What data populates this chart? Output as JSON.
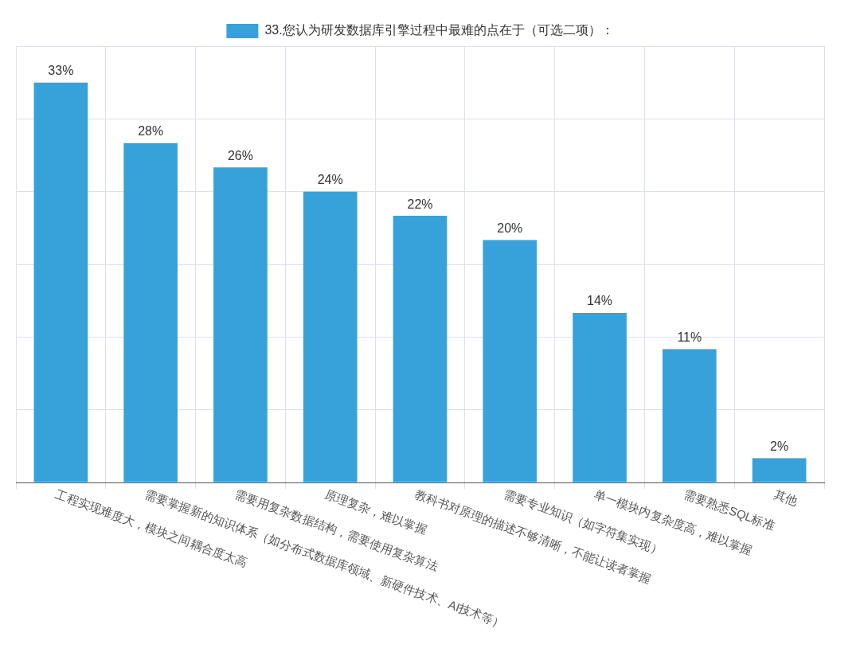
{
  "chart_data": {
    "type": "bar",
    "categories": [
      "工程实现难度大，模块之间耦合度太高",
      "需要掌握新的知识体系（如分布式数据库领域、新硬件技术、AI技术等）",
      "需要用复杂数据结构，需要使用复杂算法",
      "原理复杂，难以掌握",
      "教科书对原理的描述不够清晰，不能让读者掌握",
      "需要专业知识（如字符集实现）",
      "单一模块内复杂度高，难以掌握",
      "需要熟悉SQL标准",
      "其他"
    ],
    "series": [
      {
        "name": "33.您认为研发数据库引擎过程中最难的点在于（可选二项）：",
        "color": "#37a2da",
        "values": [
          33,
          28,
          26,
          24,
          22,
          20,
          14,
          11,
          2
        ],
        "value_labels": [
          "33%",
          "28%",
          "26%",
          "24%",
          "22%",
          "20%",
          "14%",
          "11%",
          "2%"
        ]
      }
    ],
    "ylim": [
      0,
      36
    ],
    "yticks": [
      {
        "value": 0,
        "label": null
      },
      {
        "value": 6,
        "label": null
      },
      {
        "value": 12,
        "label": null
      },
      {
        "value": 18,
        "label": null
      },
      {
        "value": 24,
        "label": null
      },
      {
        "value": 30,
        "label": null
      },
      {
        "value": 36,
        "label": null
      }
    ],
    "grid": true,
    "legend": "top",
    "tick_labels": "x"
  }
}
